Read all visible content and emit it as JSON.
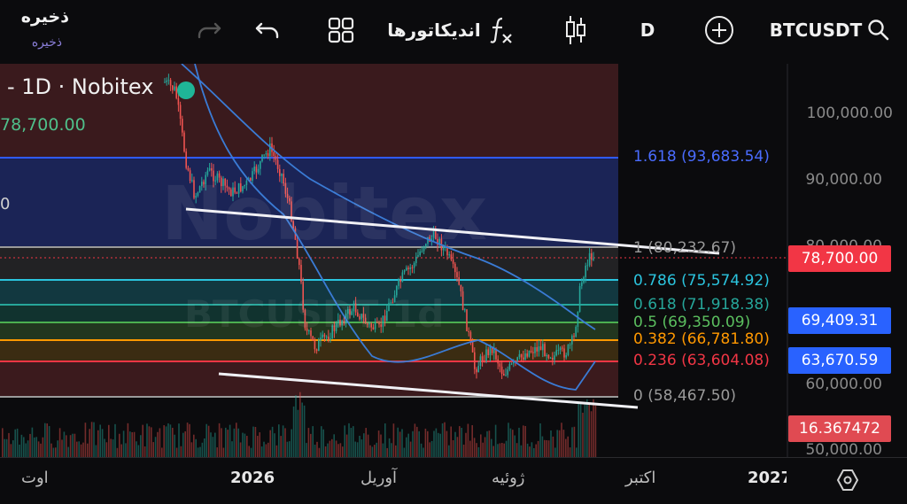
{
  "toolbar": {
    "save_title": "ذخیره",
    "save_subtitle": "ذخیره",
    "indicators_label": "اندیکاتورها",
    "interval_label": "D",
    "symbol": "BTCUSDT"
  },
  "legend": {
    "title": "- 1D · Nobitex",
    "price": "78,700.00",
    "value_fragment": "0"
  },
  "watermark": {
    "brand": "Nobitex",
    "symbol": "BTCUSDT 1d"
  },
  "price_axis": {
    "labels": [
      "100,000.00",
      "90,000.00",
      "80,000.00",
      "60,000.00",
      "50,000.00"
    ]
  },
  "badges": {
    "last_price": "78,700.00",
    "moving_average_1": "69,409.31",
    "moving_average_2": "63,670.59",
    "volume": "16.367472"
  },
  "fibonacci": {
    "levels": [
      {
        "label": "1.618 (93,683.54)",
        "color": "#2f5bff"
      },
      {
        "label": "1 (80,232.67)",
        "color": "#9a9a9a"
      },
      {
        "label": "0.786 (75,574.92)",
        "color": "#2bc4de"
      },
      {
        "label": "0.618 (71,918.38)",
        "color": "#26a69a"
      },
      {
        "label": "0.5 (69,350.09)",
        "color": "#4caf50"
      },
      {
        "label": "0.382 (66,781.80)",
        "color": "#ff9800"
      },
      {
        "label": "0.236 (63,604.08)",
        "color": "#f23645"
      },
      {
        "label": "0 (58,467.50)",
        "color": "#9a9a9a"
      }
    ]
  },
  "time_axis": {
    "labels": [
      "اوت",
      "2026",
      "آوریل",
      "ژوئیه",
      "اکتبر",
      "2027"
    ]
  },
  "colors": {
    "up": "#26a69a",
    "down": "#ef5350",
    "ma": "#3a7bd5",
    "last_price_badge": "#f23645",
    "ma_badge": "#2962ff"
  }
}
